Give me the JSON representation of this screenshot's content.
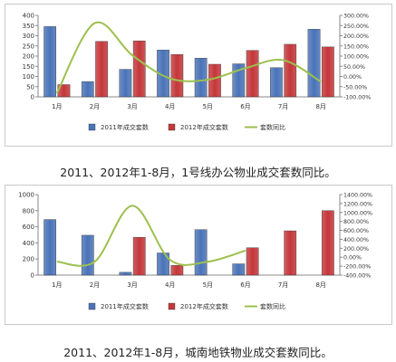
{
  "chart_data": [
    {
      "type": "bar",
      "categories": [
        "1月",
        "2月",
        "3月",
        "4月",
        "5月",
        "6月",
        "7月",
        "8月"
      ],
      "series": [
        {
          "name": "2011年成交套数",
          "kind": "bar",
          "axis": "left",
          "color": "#4a73b8",
          "values": [
            345,
            75,
            135,
            230,
            190,
            162,
            143,
            332
          ]
        },
        {
          "name": "2012年成交套数",
          "kind": "bar",
          "axis": "left",
          "color": "#c4373a",
          "values": [
            60,
            272,
            275,
            208,
            160,
            228,
            258,
            245
          ]
        },
        {
          "name": "套数同比",
          "kind": "line",
          "axis": "right",
          "color": "#9dc04e",
          "values": [
            -82,
            262,
            104,
            -10,
            -16,
            41,
            80,
            -26
          ]
        }
      ],
      "ylim_left": [
        0,
        400
      ],
      "yticks_left": [
        0,
        50,
        100,
        150,
        200,
        250,
        300,
        350,
        400
      ],
      "ylim_right": [
        -100,
        300
      ],
      "yticks_right": [
        -100,
        -50,
        0,
        50,
        100,
        150,
        200,
        250,
        300
      ],
      "ytick_labels_right": [
        "-100.00%",
        "-50.00%",
        "0.00%",
        "50.00%",
        "100.00%",
        "150.00%",
        "200.00%",
        "250.00%",
        "300.00%"
      ],
      "legend_position": "bottom",
      "grid": false
    },
    {
      "type": "bar",
      "categories": [
        "1月",
        "2月",
        "3月",
        "4月",
        "5月",
        "6月",
        "7月",
        "8月"
      ],
      "series": [
        {
          "name": "2011年成交套数",
          "kind": "bar",
          "axis": "left",
          "color": "#4a73b8",
          "values": [
            690,
            495,
            35,
            275,
            565,
            140,
            0,
            0
          ]
        },
        {
          "name": "2012年成交套数",
          "kind": "bar",
          "axis": "left",
          "color": "#c4373a",
          "values": [
            0,
            0,
            470,
            120,
            0,
            340,
            550,
            800
          ]
        },
        {
          "name": "套数同比",
          "kind": "line",
          "axis": "right",
          "color": "#9dc04e",
          "values": [
            -100,
            -100,
            1150,
            -60,
            -100,
            150,
            null,
            null
          ]
        }
      ],
      "ylim_left": [
        0,
        1000
      ],
      "yticks_left": [
        0,
        200,
        400,
        600,
        800,
        1000
      ],
      "ylim_right": [
        -400,
        1400
      ],
      "yticks_right": [
        -400,
        -200,
        0,
        200,
        400,
        600,
        800,
        1000,
        1200,
        1400
      ],
      "ytick_labels_right": [
        "-400.00%",
        "-200.00%",
        "0.00%",
        "200.00%",
        "400.00%",
        "600.00%",
        "800.00%",
        "1000.00%",
        "1200.00%",
        "1400.00%"
      ],
      "legend_position": "bottom",
      "grid": false
    }
  ],
  "captions": [
    "2011、2012年1-8月，1号线办公物业成交套数同比。",
    "2011、2012年1-8月，城南地铁物业成交套数同比。"
  ]
}
